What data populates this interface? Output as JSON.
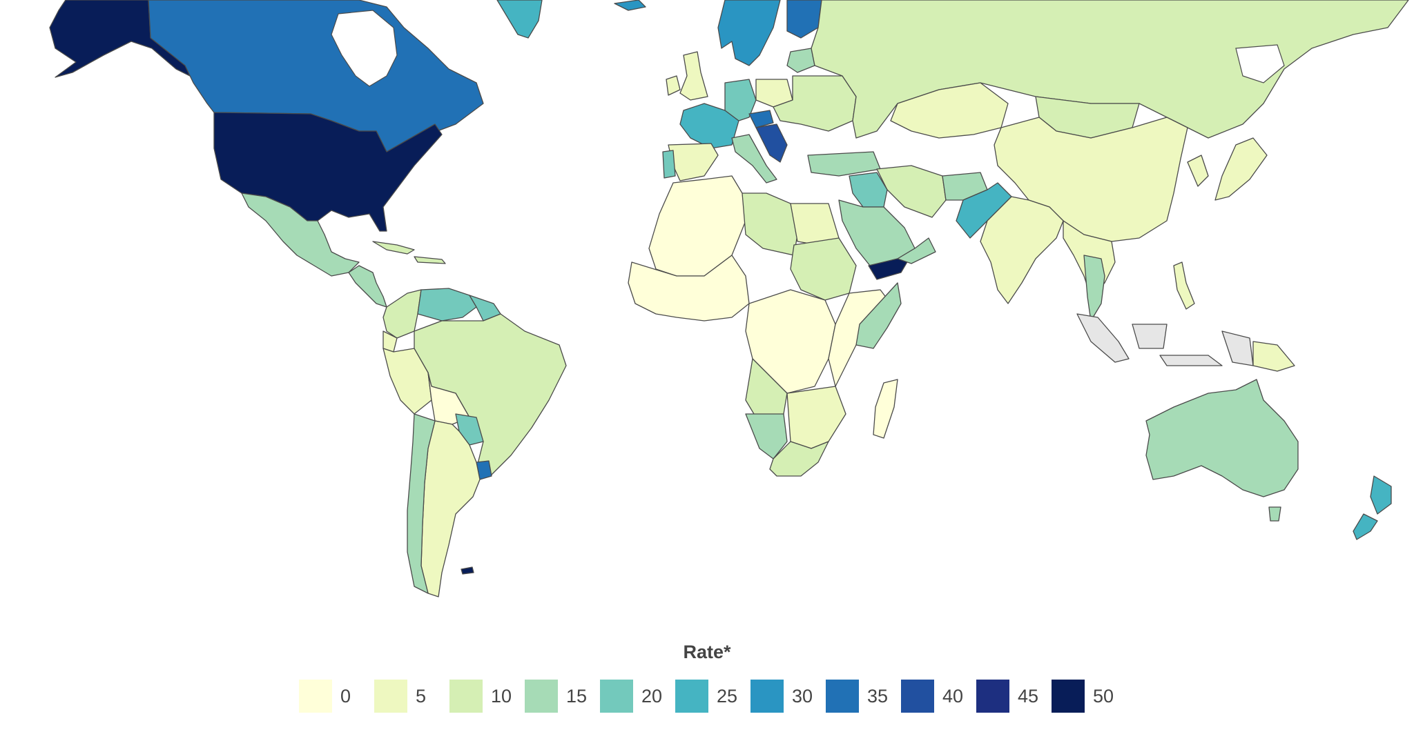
{
  "legend": {
    "title": "Rate*",
    "items": [
      {
        "label": "0",
        "color": "#ffffd9"
      },
      {
        "label": "5",
        "color": "#eef8c0"
      },
      {
        "label": "10",
        "color": "#d5efb4"
      },
      {
        "label": "15",
        "color": "#a6dbb6"
      },
      {
        "label": "20",
        "color": "#73c9bc"
      },
      {
        "label": "25",
        "color": "#45b4c2"
      },
      {
        "label": "30",
        "color": "#2a95c2"
      },
      {
        "label": "35",
        "color": "#2171b5"
      },
      {
        "label": "40",
        "color": "#2150a0"
      },
      {
        "label": "45",
        "color": "#1d2f80"
      },
      {
        "label": "50",
        "color": "#081d58"
      }
    ]
  },
  "no_data_color": "#e6e6e6",
  "regions": [
    {
      "id": "alaska",
      "color": "#081d58"
    },
    {
      "id": "canada",
      "color": "#2171b5"
    },
    {
      "id": "usa",
      "color": "#081d58"
    },
    {
      "id": "greenland",
      "color": "#45b4c2"
    },
    {
      "id": "mexico",
      "color": "#a6dbb6"
    },
    {
      "id": "central-america",
      "color": "#a6dbb6"
    },
    {
      "id": "caribbean",
      "color": "#d5efb4"
    },
    {
      "id": "colombia",
      "color": "#d5efb4"
    },
    {
      "id": "venezuela",
      "color": "#73c9bc"
    },
    {
      "id": "guianas",
      "color": "#73c9bc"
    },
    {
      "id": "ecuador",
      "color": "#eef8c0"
    },
    {
      "id": "peru",
      "color": "#eef8c0"
    },
    {
      "id": "brazil",
      "color": "#d5efb4"
    },
    {
      "id": "bolivia",
      "color": "#ffffd9"
    },
    {
      "id": "paraguay",
      "color": "#73c9bc"
    },
    {
      "id": "uruguay",
      "color": "#2171b5"
    },
    {
      "id": "chile",
      "color": "#a6dbb6"
    },
    {
      "id": "argentina",
      "color": "#eef8c0"
    },
    {
      "id": "falklands",
      "color": "#081d58"
    },
    {
      "id": "iceland",
      "color": "#2a95c2"
    },
    {
      "id": "uk",
      "color": "#eef8c0"
    },
    {
      "id": "ireland",
      "color": "#eef8c0"
    },
    {
      "id": "scandinavia",
      "color": "#2a95c2"
    },
    {
      "id": "finland",
      "color": "#2171b5"
    },
    {
      "id": "baltics",
      "color": "#a6dbb6"
    },
    {
      "id": "france",
      "color": "#45b4c2"
    },
    {
      "id": "germany",
      "color": "#73c9bc"
    },
    {
      "id": "poland",
      "color": "#eef8c0"
    },
    {
      "id": "eastern-europe",
      "color": "#d5efb4"
    },
    {
      "id": "hungary",
      "color": "#2171b5"
    },
    {
      "id": "balkans",
      "color": "#2150a0"
    },
    {
      "id": "spain",
      "color": "#eef8c0"
    },
    {
      "id": "portugal",
      "color": "#73c9bc"
    },
    {
      "id": "italy",
      "color": "#a6dbb6"
    },
    {
      "id": "turkey",
      "color": "#a6dbb6"
    },
    {
      "id": "russia",
      "color": "#d5efb4"
    },
    {
      "id": "kazakhstan",
      "color": "#eef8c0"
    },
    {
      "id": "mongolia",
      "color": "#d5efb4"
    },
    {
      "id": "china",
      "color": "#eef8c0"
    },
    {
      "id": "iran",
      "color": "#d5efb4"
    },
    {
      "id": "afghanistan",
      "color": "#a6dbb6"
    },
    {
      "id": "pakistan",
      "color": "#45b4c2"
    },
    {
      "id": "india",
      "color": "#eef8c0"
    },
    {
      "id": "iraq",
      "color": "#73c9bc"
    },
    {
      "id": "saudi-arabia",
      "color": "#a6dbb6"
    },
    {
      "id": "yemen",
      "color": "#081d58"
    },
    {
      "id": "oman",
      "color": "#a6dbb6"
    },
    {
      "id": "se-asia",
      "color": "#eef8c0"
    },
    {
      "id": "thailand",
      "color": "#a6dbb6"
    },
    {
      "id": "japan",
      "color": "#eef8c0"
    },
    {
      "id": "korea",
      "color": "#eef8c0"
    },
    {
      "id": "philippines",
      "color": "#eef8c0"
    },
    {
      "id": "indonesia",
      "color": "#e6e6e6"
    },
    {
      "id": "png",
      "color": "#eef8c0"
    },
    {
      "id": "north-africa",
      "color": "#ffffd9"
    },
    {
      "id": "libya",
      "color": "#d5efb4"
    },
    {
      "id": "egypt",
      "color": "#eef8c0"
    },
    {
      "id": "sudan",
      "color": "#d5efb4"
    },
    {
      "id": "west-africa",
      "color": "#ffffd9"
    },
    {
      "id": "central-africa",
      "color": "#ffffd9"
    },
    {
      "id": "east-africa",
      "color": "#ffffd9"
    },
    {
      "id": "kenya",
      "color": "#a6dbb6"
    },
    {
      "id": "angola",
      "color": "#d5efb4"
    },
    {
      "id": "namibia",
      "color": "#a6dbb6"
    },
    {
      "id": "south-africa",
      "color": "#d5efb4"
    },
    {
      "id": "mozambique",
      "color": "#eef8c0"
    },
    {
      "id": "madagascar",
      "color": "#ffffd9"
    },
    {
      "id": "australia",
      "color": "#a6dbb6"
    },
    {
      "id": "tasmania",
      "color": "#a6dbb6"
    },
    {
      "id": "new-zealand",
      "color": "#45b4c2"
    }
  ]
}
